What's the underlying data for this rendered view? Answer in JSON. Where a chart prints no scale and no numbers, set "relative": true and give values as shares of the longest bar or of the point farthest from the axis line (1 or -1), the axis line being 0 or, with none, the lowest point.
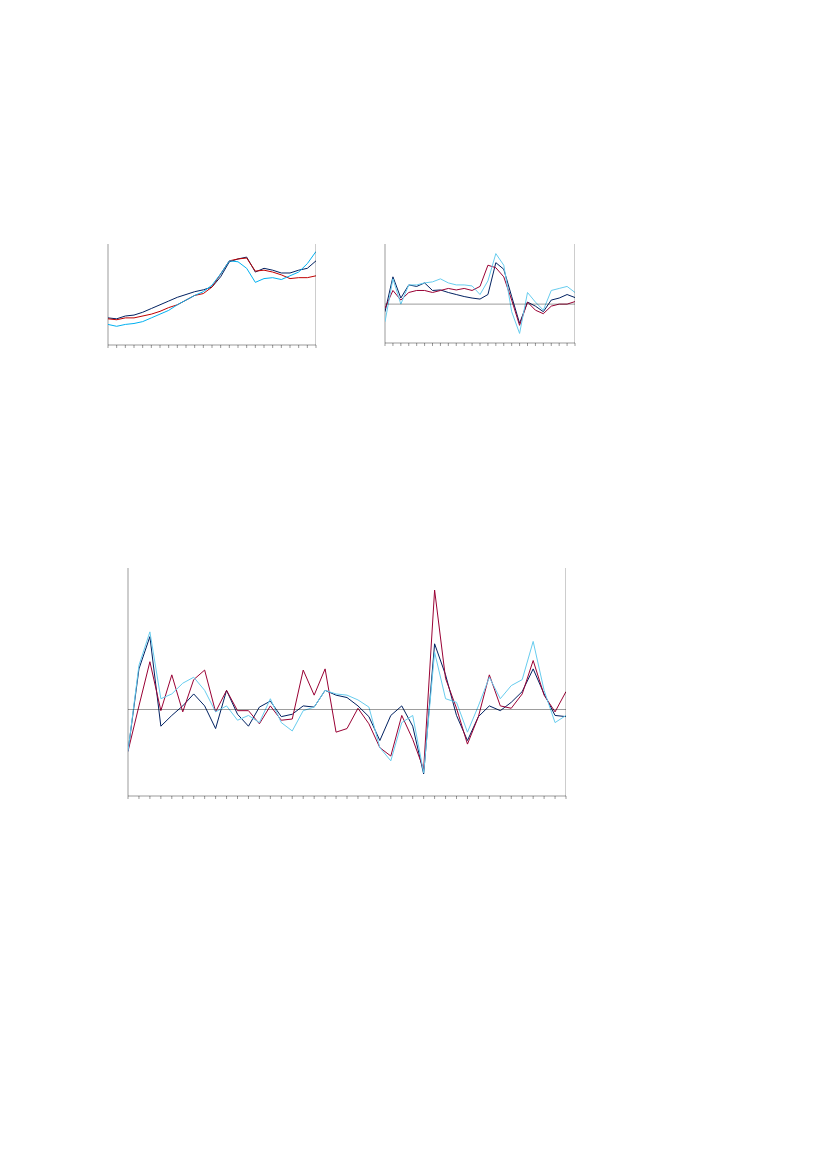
{
  "chart_data": [
    {
      "type": "line",
      "relative": true,
      "line_style": "solid",
      "categories": [
        null,
        null,
        null,
        null,
        null,
        null,
        null,
        null,
        null,
        null,
        null,
        null,
        null,
        null,
        null,
        null,
        null,
        null,
        null,
        null,
        null,
        null,
        null,
        null,
        null
      ],
      "series": [
        {
          "color": "#002060",
          "values": [
            0.29,
            0.28,
            0.31,
            0.32,
            0.35,
            0.39,
            0.43,
            0.47,
            0.51,
            0.54,
            0.57,
            0.59,
            0.62,
            0.73,
            0.89,
            0.92,
            0.94,
            0.78,
            0.82,
            0.8,
            0.77,
            0.77,
            0.8,
            0.82,
            0.9
          ]
        },
        {
          "color": "#c00000",
          "values": [
            0.28,
            0.27,
            0.29,
            0.29,
            0.31,
            0.33,
            0.36,
            0.4,
            0.43,
            0.48,
            0.53,
            0.55,
            0.62,
            0.76,
            0.9,
            0.92,
            0.93,
            0.79,
            0.8,
            0.78,
            0.75,
            0.71,
            0.72,
            0.72,
            0.74
          ]
        },
        {
          "color": "#00b0f0",
          "values": [
            0.22,
            0.2,
            0.22,
            0.23,
            0.25,
            0.29,
            0.33,
            0.37,
            0.43,
            0.48,
            0.53,
            0.57,
            0.64,
            0.76,
            0.9,
            0.89,
            0.82,
            0.67,
            0.71,
            0.72,
            0.7,
            0.74,
            0.78,
            0.87,
            1
          ]
        }
      ]
    },
    {
      "type": "line",
      "relative": true,
      "line_style": "solid",
      "categories": [
        null,
        null,
        null,
        null,
        null,
        null,
        null,
        null,
        null,
        null,
        null,
        null,
        null,
        null,
        null,
        null,
        null,
        null,
        null,
        null,
        null,
        null,
        null,
        null,
        null
      ],
      "series": [
        {
          "color": "#002060",
          "values": [
            -0.15,
            0.54,
            0.12,
            0.38,
            0.35,
            0.42,
            0.27,
            0.28,
            0.23,
            0.19,
            0.15,
            0.12,
            0.1,
            0.19,
            0.82,
            0.69,
            0.15,
            -0.38,
            0.04,
            -0.04,
            -0.15,
            0.08,
            0.12,
            0.19,
            0.13
          ]
        },
        {
          "color": "#990033",
          "values": [
            -0.08,
            0.27,
            0.08,
            0.23,
            0.27,
            0.27,
            0.23,
            0.27,
            0.31,
            0.28,
            0.31,
            0.27,
            0.35,
            0.77,
            0.72,
            0.54,
            0.08,
            -0.42,
            0.04,
            -0.12,
            -0.19,
            -0.04,
            0,
            0,
            0.05
          ]
        },
        {
          "color": "#66ccee",
          "values": [
            -0.35,
            0.5,
            0,
            0.38,
            0.38,
            0.42,
            0.44,
            0.5,
            0.42,
            0.38,
            0.38,
            0.36,
            0.19,
            0.46,
            1,
            0.77,
            -0.15,
            -0.58,
            0.23,
            0.04,
            -0.12,
            0.27,
            0.31,
            0.35,
            0.23
          ]
        }
      ]
    },
    {
      "type": "line",
      "relative": true,
      "line_style": "solid",
      "categories": [
        null,
        null,
        null,
        null,
        null,
        null,
        null,
        null,
        null,
        null,
        null,
        null,
        null,
        null,
        null,
        null,
        null,
        null,
        null,
        null,
        null,
        null,
        null,
        null,
        null,
        null,
        null,
        null,
        null,
        null,
        null,
        null,
        null,
        null,
        null,
        null,
        null,
        null,
        null,
        null,
        null
      ],
      "series": [
        {
          "color": "#002060",
          "values": [
            -0.35,
            0.34,
            0.61,
            -0.14,
            -0.05,
            0.03,
            0.13,
            0.03,
            -0.16,
            0.16,
            -0.04,
            -0.14,
            0.02,
            0.07,
            -0.06,
            -0.04,
            0.03,
            0.02,
            0.16,
            0.12,
            0.1,
            0.03,
            -0.06,
            -0.26,
            -0.05,
            0.03,
            -0.14,
            -0.54,
            0.55,
            0.29,
            -0.05,
            -0.26,
            -0.06,
            0.03,
            -0.01,
            0.06,
            0.15,
            0.34,
            0.13,
            -0.05,
            -0.06
          ]
        },
        {
          "color": "#990033",
          "values": [
            -0.35,
            0.03,
            0.4,
            -0.01,
            0.29,
            -0.02,
            0.25,
            0.33,
            -0.02,
            0.16,
            -0.01,
            -0.01,
            -0.12,
            0.03,
            -0.09,
            -0.08,
            0.33,
            0.12,
            0.34,
            -0.19,
            -0.16,
            0.01,
            -0.12,
            -0.32,
            -0.39,
            -0.05,
            -0.25,
            -0.5,
            1,
            0.26,
            0.01,
            -0.29,
            -0.06,
            0.29,
            0.03,
            0.01,
            0.13,
            0.41,
            0.12,
            -0.02,
            0.15
          ]
        },
        {
          "color": "#66ccee",
          "values": [
            -0.35,
            0.37,
            0.65,
            0.09,
            0.13,
            0.22,
            0.27,
            0.16,
            -0.02,
            0.03,
            -0.09,
            -0.05,
            -0.11,
            0.09,
            -0.11,
            -0.18,
            -0.01,
            0.02,
            0.16,
            0.13,
            0.12,
            0.08,
            0.02,
            -0.32,
            -0.43,
            -0.11,
            -0.05,
            -0.53,
            0.48,
            0.09,
            0.06,
            -0.19,
            0.03,
            0.27,
            0.09,
            0.2,
            0.25,
            0.57,
            0.16,
            -0.11,
            -0.05
          ]
        }
      ]
    }
  ]
}
